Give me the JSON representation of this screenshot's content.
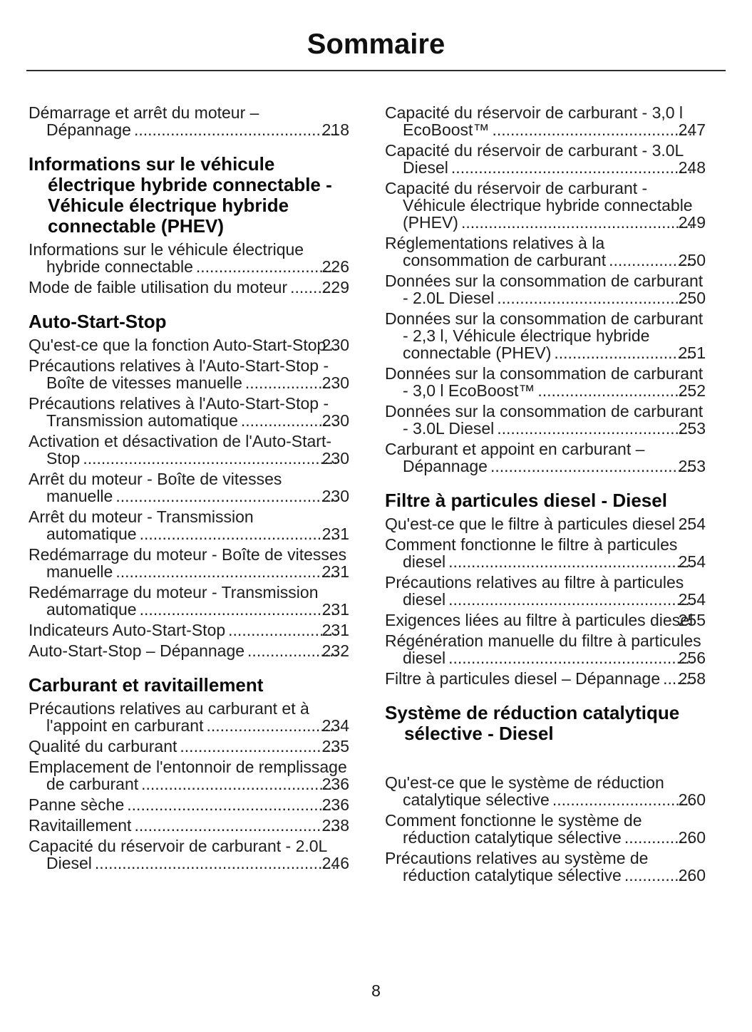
{
  "page": {
    "title": "Sommaire",
    "number": "8"
  },
  "toc": {
    "left": [
      {
        "items": [
          {
            "text": "Démarrage et arrêt du moteur – Dépannage",
            "page": "218"
          }
        ]
      },
      {
        "heading": "Informations sur le véhicule électrique hybride connectable - Véhicule électrique hybride connectable (PHEV)",
        "items": [
          {
            "text": "Informations sur le véhicule électrique hybride connectable",
            "page": "226"
          },
          {
            "text": "Mode de faible utilisation du moteur",
            "page": "229"
          }
        ]
      },
      {
        "heading": "Auto-Start-Stop",
        "items": [
          {
            "text": "Qu'est-ce que la fonction Auto-Start-Stop",
            "page": "230"
          },
          {
            "text": "Précautions relatives à l'Auto-Start-Stop - Boîte de vitesses manuelle",
            "page": "230"
          },
          {
            "text": "Précautions relatives à l'Auto-Start-Stop - Transmission automatique",
            "page": "230"
          },
          {
            "text": "Activation et désactivation de l'Auto-Start-Stop",
            "page": "230"
          },
          {
            "text": "Arrêt du moteur - Boîte de vitesses manuelle",
            "page": "230"
          },
          {
            "text": "Arrêt du moteur - Transmission automatique",
            "page": "231"
          },
          {
            "text": "Redémarrage du moteur - Boîte de vitesses manuelle",
            "page": "231"
          },
          {
            "text": "Redémarrage du moteur - Transmission automatique",
            "page": "231"
          },
          {
            "text": "Indicateurs Auto-Start-Stop",
            "page": "231"
          },
          {
            "text": "Auto-Start-Stop – Dépannage",
            "page": "232"
          }
        ]
      },
      {
        "heading": "Carburant et ravitaillement",
        "items": [
          {
            "text": "Précautions relatives au carburant et à l'appoint en carburant",
            "page": "234"
          },
          {
            "text": "Qualité du carburant",
            "page": "235"
          },
          {
            "text": "Emplacement de l'entonnoir de remplissage de carburant",
            "page": "236"
          },
          {
            "text": "Panne sèche",
            "page": "236"
          },
          {
            "text": "Ravitaillement",
            "page": "238"
          },
          {
            "text": "Capacité du réservoir de carburant - 2.0L Diesel",
            "page": "246"
          }
        ]
      }
    ],
    "right": [
      {
        "items": [
          {
            "text": "Capacité du réservoir de carburant - 3,0 l EcoBoost™",
            "page": "247"
          },
          {
            "text": "Capacité du réservoir de carburant - 3.0L Diesel",
            "page": "248"
          },
          {
            "text": "Capacité du réservoir de carburant - Véhicule électrique hybride connectable (PHEV)",
            "page": "249"
          },
          {
            "text": "Réglementations relatives à la consommation de carburant",
            "page": "250"
          },
          {
            "text": "Données sur la consommation de carburant - 2.0L Diesel",
            "page": "250"
          },
          {
            "text": "Données sur la consommation de carburant - 2,3 l, Véhicule électrique hybride connectable (PHEV)",
            "page": "251"
          },
          {
            "text": "Données sur la consommation de carburant - 3,0 l EcoBoost™",
            "page": "252"
          },
          {
            "text": "Données sur la consommation de carburant - 3.0L Diesel",
            "page": "253"
          },
          {
            "text": "Carburant et appoint en carburant – Dépannage",
            "page": "253"
          }
        ]
      },
      {
        "heading": "Filtre à particules diesel - Diesel",
        "items": [
          {
            "text": "Qu'est-ce que le filtre à particules diesel",
            "page": "254"
          },
          {
            "text": "Comment fonctionne le filtre à particules diesel",
            "page": "254"
          },
          {
            "text": "Précautions relatives au filtre à particules diesel",
            "page": "254"
          },
          {
            "text": "Exigences liées au filtre à particules diesel",
            "page": "255"
          },
          {
            "text": "Régénération manuelle du filtre à particules diesel",
            "page": "256"
          },
          {
            "text": "Filtre à particules diesel – Dépannage",
            "page": "258"
          }
        ]
      },
      {
        "heading": "Système de réduction catalytique sélective - Diesel",
        "items": [
          {
            "text": "Qu'est-ce que le système de réduction catalytique sélective",
            "page": "260"
          },
          {
            "text": "Comment fonctionne le système de réduction catalytique sélective",
            "page": "260"
          },
          {
            "text": "Précautions relatives au système de réduction catalytique sélective",
            "page": "260"
          }
        ]
      }
    ]
  }
}
